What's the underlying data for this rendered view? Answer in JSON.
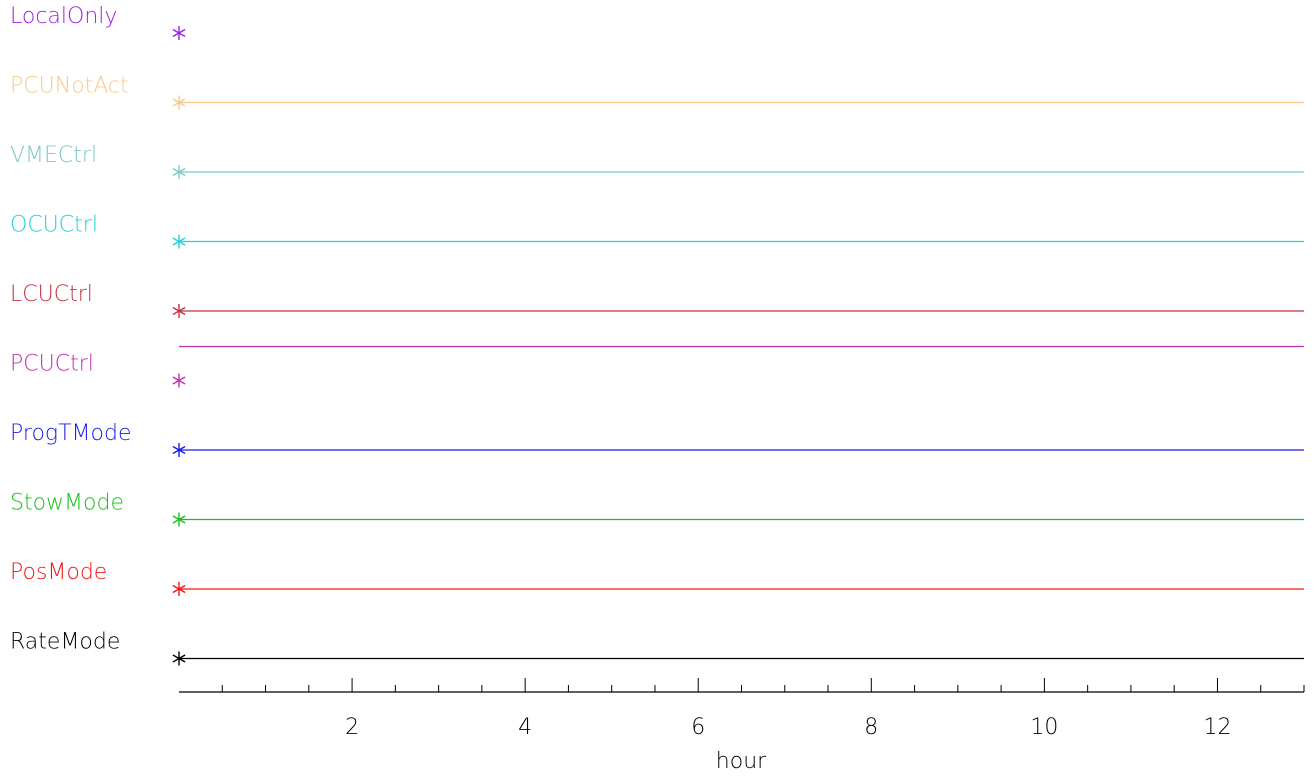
{
  "chart_data": {
    "type": "line",
    "xlabel": "hour",
    "xlim": [
      0,
      13
    ],
    "x_ticks": [
      2,
      4,
      6,
      8,
      10,
      12
    ],
    "x_tick_labels": [
      "2",
      "4",
      "6",
      "8",
      "10",
      "12"
    ],
    "x_minor_tick_step": 0.5,
    "grid": false,
    "legend": "none",
    "series": [
      {
        "name": "LocalOnly",
        "color": "#9b1ee6",
        "marker": "asterisk",
        "marker_x": 0,
        "line": false,
        "level": 0
      },
      {
        "name": "PCUNotAct",
        "color": "#f7c98a",
        "marker": "asterisk",
        "marker_x": 0,
        "line": true,
        "line_x": [
          0,
          13
        ],
        "level": 0
      },
      {
        "name": "VMECtrl",
        "color": "#7ec8c8",
        "marker": "asterisk",
        "marker_x": 0,
        "line": true,
        "line_x": [
          0,
          13
        ],
        "level": 0
      },
      {
        "name": "OCUCtrl",
        "color": "#1fd3d8",
        "marker": "asterisk",
        "marker_x": 0,
        "line": true,
        "line_x": [
          0,
          13
        ],
        "level": 0
      },
      {
        "name": "LCUCtrl",
        "color": "#c8303e",
        "marker": "asterisk",
        "marker_x": 0,
        "line": true,
        "line_x": [
          0,
          13
        ],
        "level": 0
      },
      {
        "name": "PCUCtrl",
        "color": "#c030b0",
        "marker": "asterisk",
        "marker_x": 0,
        "line": true,
        "line_x": [
          0,
          13
        ],
        "level": 1
      },
      {
        "name": "ProgTMode",
        "color": "#1c1ce8",
        "marker": "asterisk",
        "marker_x": 0,
        "line": true,
        "line_x": [
          0,
          13
        ],
        "level": 0
      },
      {
        "name": "StowMode",
        "color": "#18c018",
        "marker": "asterisk",
        "marker_x": 0,
        "line": true,
        "line_x": [
          0,
          13
        ],
        "level": 0
      },
      {
        "name": "PosMode",
        "color": "#f01414",
        "marker": "asterisk",
        "marker_x": 0,
        "line": true,
        "line_x": [
          0,
          13
        ],
        "level": 0
      },
      {
        "name": "RateMode",
        "color": "#000000",
        "marker": "asterisk",
        "marker_x": 0,
        "line": true,
        "line_x": [
          0,
          13
        ],
        "level": 0
      }
    ]
  }
}
